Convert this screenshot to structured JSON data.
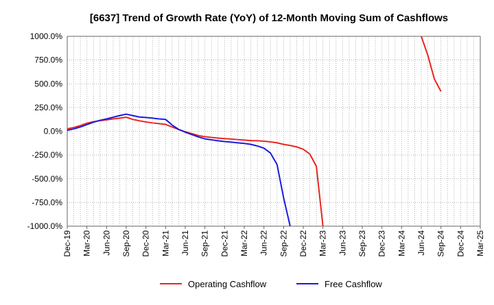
{
  "chart_data": {
    "type": "line",
    "title": "[6637]  Trend of Growth Rate (YoY) of 12-Month Moving Sum of Cashflows",
    "xlabel": "",
    "ylabel": "",
    "ylim": [
      -1000,
      1000
    ],
    "y_ticks": [
      1000,
      750,
      500,
      250,
      0,
      -250,
      -500,
      -750,
      -1000
    ],
    "y_tick_labels": [
      "1000.0%",
      "750.0%",
      "500.0%",
      "250.0%",
      "0.0%",
      "-250.0%",
      "-500.0%",
      "-750.0%",
      "-1000.0%"
    ],
    "x_tick_labels": [
      "Dec-19",
      "Mar-20",
      "Jun-20",
      "Sep-20",
      "Dec-20",
      "Mar-21",
      "Jun-21",
      "Sep-21",
      "Dec-21",
      "Mar-22",
      "Jun-22",
      "Sep-22",
      "Dec-22",
      "Mar-23",
      "Jun-23",
      "Sep-23",
      "Dec-23",
      "Mar-24",
      "Jun-24",
      "Sep-24",
      "Dec-24",
      "Mar-25"
    ],
    "x_start": "Dec-19",
    "x_months": 63,
    "grid": true,
    "legend_position": "bottom-center",
    "series": [
      {
        "name": "Operating Cashflow",
        "color": "#e8251f",
        "points": [
          [
            "Dec-19",
            25
          ],
          [
            "Jan-20",
            40
          ],
          [
            "Feb-20",
            60
          ],
          [
            "Mar-20",
            85
          ],
          [
            "Apr-20",
            100
          ],
          [
            "May-20",
            112
          ],
          [
            "Jun-20",
            120
          ],
          [
            "Jul-20",
            130
          ],
          [
            "Aug-20",
            138
          ],
          [
            "Sep-20",
            148
          ],
          [
            "Oct-20",
            125
          ],
          [
            "Nov-20",
            110
          ],
          [
            "Dec-20",
            98
          ],
          [
            "Jan-21",
            88
          ],
          [
            "Feb-21",
            80
          ],
          [
            "Mar-21",
            72
          ],
          [
            "Apr-21",
            45
          ],
          [
            "May-21",
            18
          ],
          [
            "Jun-21",
            -5
          ],
          [
            "Jul-21",
            -25
          ],
          [
            "Aug-21",
            -45
          ],
          [
            "Sep-21",
            -58
          ],
          [
            "Oct-21",
            -65
          ],
          [
            "Nov-21",
            -72
          ],
          [
            "Dec-21",
            -78
          ],
          [
            "Jan-22",
            -82
          ],
          [
            "Feb-22",
            -88
          ],
          [
            "Mar-22",
            -93
          ],
          [
            "Apr-22",
            -98
          ],
          [
            "May-22",
            -100
          ],
          [
            "Jun-22",
            -105
          ],
          [
            "Jul-22",
            -112
          ],
          [
            "Aug-22",
            -122
          ],
          [
            "Sep-22",
            -138
          ],
          [
            "Oct-22",
            -150
          ],
          [
            "Nov-22",
            -165
          ],
          [
            "Dec-22",
            -190
          ],
          [
            "Jan-23",
            -240
          ],
          [
            "Feb-23",
            -370
          ],
          [
            "Mar-23",
            -1000
          ],
          [
            "Jun-24",
            1000
          ],
          [
            "Jul-24",
            800
          ],
          [
            "Aug-24",
            550
          ],
          [
            "Sep-24",
            420
          ]
        ]
      },
      {
        "name": "Free Cashflow",
        "color": "#1a1adf",
        "points": [
          [
            "Dec-19",
            10
          ],
          [
            "Jan-20",
            25
          ],
          [
            "Feb-20",
            45
          ],
          [
            "Mar-20",
            70
          ],
          [
            "Apr-20",
            95
          ],
          [
            "May-20",
            115
          ],
          [
            "Jun-20",
            130
          ],
          [
            "Jul-20",
            148
          ],
          [
            "Aug-20",
            165
          ],
          [
            "Sep-20",
            180
          ],
          [
            "Oct-20",
            165
          ],
          [
            "Nov-20",
            150
          ],
          [
            "Dec-20",
            145
          ],
          [
            "Jan-21",
            138
          ],
          [
            "Feb-21",
            130
          ],
          [
            "Mar-21",
            125
          ],
          [
            "Apr-21",
            65
          ],
          [
            "May-21",
            20
          ],
          [
            "Jun-21",
            -10
          ],
          [
            "Jul-21",
            -35
          ],
          [
            "Aug-21",
            -60
          ],
          [
            "Sep-21",
            -80
          ],
          [
            "Oct-21",
            -90
          ],
          [
            "Nov-21",
            -100
          ],
          [
            "Dec-21",
            -108
          ],
          [
            "Jan-22",
            -115
          ],
          [
            "Feb-22",
            -122
          ],
          [
            "Mar-22",
            -128
          ],
          [
            "Apr-22",
            -138
          ],
          [
            "May-22",
            -155
          ],
          [
            "Jun-22",
            -178
          ],
          [
            "Jul-22",
            -230
          ],
          [
            "Aug-22",
            -350
          ],
          [
            "Sep-22",
            -700
          ],
          [
            "Oct-22",
            -1000
          ]
        ]
      }
    ]
  }
}
